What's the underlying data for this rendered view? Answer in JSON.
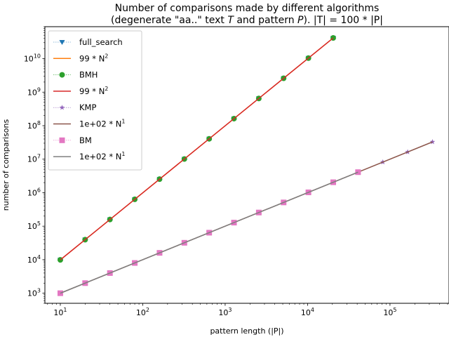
{
  "chart_data": {
    "type": "line",
    "title_line1": "Number of comparisons made by different algorithms",
    "title_line2_prefix": "(degenerate \"aa..\" text ",
    "title_line2_T": "T",
    "title_line2_mid": " and pattern ",
    "title_line2_P": "P",
    "title_line2_suffix": "). |T| = 100 * |P|",
    "xlabel": "pattern length (|P|)",
    "ylabel": "number of comparisons",
    "x_scale": "log",
    "y_scale": "log",
    "xlim": [
      6.5,
      520000
    ],
    "ylim": [
      500,
      90000000000
    ],
    "x_ticks": [
      {
        "value": 10,
        "base": "10",
        "exp": "1"
      },
      {
        "value": 100,
        "base": "10",
        "exp": "2"
      },
      {
        "value": 1000,
        "base": "10",
        "exp": "3"
      },
      {
        "value": 10000,
        "base": "10",
        "exp": "4"
      },
      {
        "value": 100000,
        "base": "10",
        "exp": "5"
      }
    ],
    "y_ticks": [
      {
        "value": 1000,
        "base": "10",
        "exp": "3"
      },
      {
        "value": 10000,
        "base": "10",
        "exp": "4"
      },
      {
        "value": 100000,
        "base": "10",
        "exp": "5"
      },
      {
        "value": 1000000,
        "base": "10",
        "exp": "6"
      },
      {
        "value": 10000000,
        "base": "10",
        "exp": "7"
      },
      {
        "value": 100000000,
        "base": "10",
        "exp": "8"
      },
      {
        "value": 1000000000,
        "base": "10",
        "exp": "9"
      },
      {
        "value": 10000000000,
        "base": "10",
        "exp": "10"
      }
    ],
    "legend_position": "upper-left",
    "series": [
      {
        "name": "full_search",
        "kind": "markers",
        "marker": "triangle-down",
        "color": "#1f77b4",
        "x": [
          10,
          20,
          40,
          80,
          160,
          320,
          640,
          1280,
          2560,
          5120,
          10240,
          20480
        ],
        "y": [
          9900,
          39600,
          158400,
          633600,
          2534400,
          10137600,
          40550400,
          162201600,
          648806400,
          2595225600,
          10380902400,
          41523609600
        ]
      },
      {
        "name": "99 * N^2",
        "label_prefix": "99 * N",
        "label_sup": "2",
        "kind": "fit",
        "color": "#ff7f0e",
        "x": [
          10,
          20480
        ],
        "y": [
          9900,
          41523609600
        ]
      },
      {
        "name": "BMH",
        "kind": "markers",
        "marker": "circle",
        "color": "#2ca02c",
        "x": [
          10,
          20,
          40,
          80,
          160,
          320,
          640,
          1280,
          2560,
          5120,
          10240,
          20480
        ],
        "y": [
          9900,
          39600,
          158400,
          633600,
          2534400,
          10137600,
          40550400,
          162201600,
          648806400,
          2595225600,
          10380902400,
          41523609600
        ]
      },
      {
        "name": "99 * N^2",
        "label_prefix": "99 * N",
        "label_sup": "2",
        "kind": "fit",
        "color": "#d62728",
        "x": [
          10,
          20480
        ],
        "y": [
          9900,
          41523609600
        ]
      },
      {
        "name": "KMP",
        "kind": "markers",
        "marker": "star",
        "color": "#9467bd",
        "x": [
          10,
          20,
          40,
          80,
          160,
          320,
          640,
          1280,
          2560,
          5120,
          10240,
          20480,
          40960,
          81920,
          163840,
          327680
        ],
        "y": [
          1000,
          2000,
          4000,
          8000,
          16000,
          32000,
          64000,
          128000,
          256000,
          512000,
          1024000,
          2048000,
          4096000,
          8192000,
          16384000,
          32768000
        ]
      },
      {
        "name": "1e+02 * N^1",
        "label_prefix": "1e+02 * N",
        "label_sup": "1",
        "kind": "fit",
        "color": "#8c564b",
        "x": [
          10,
          327680
        ],
        "y": [
          1000,
          32768000
        ]
      },
      {
        "name": "BM",
        "kind": "markers",
        "marker": "square",
        "color": "#e377c2",
        "x": [
          10,
          20,
          40,
          80,
          160,
          320,
          640,
          1280,
          2560,
          5120,
          10240,
          20480,
          40960
        ],
        "y": [
          1000,
          2000,
          4000,
          8000,
          16000,
          32000,
          64000,
          128000,
          256000,
          512000,
          1024000,
          2048000,
          4096000
        ]
      },
      {
        "name": "1e+02 * N^1",
        "label_prefix": "1e+02 * N",
        "label_sup": "1",
        "kind": "fit",
        "color": "#7f7f7f",
        "x": [
          10,
          40960
        ],
        "y": [
          1000,
          4096000
        ]
      }
    ]
  }
}
